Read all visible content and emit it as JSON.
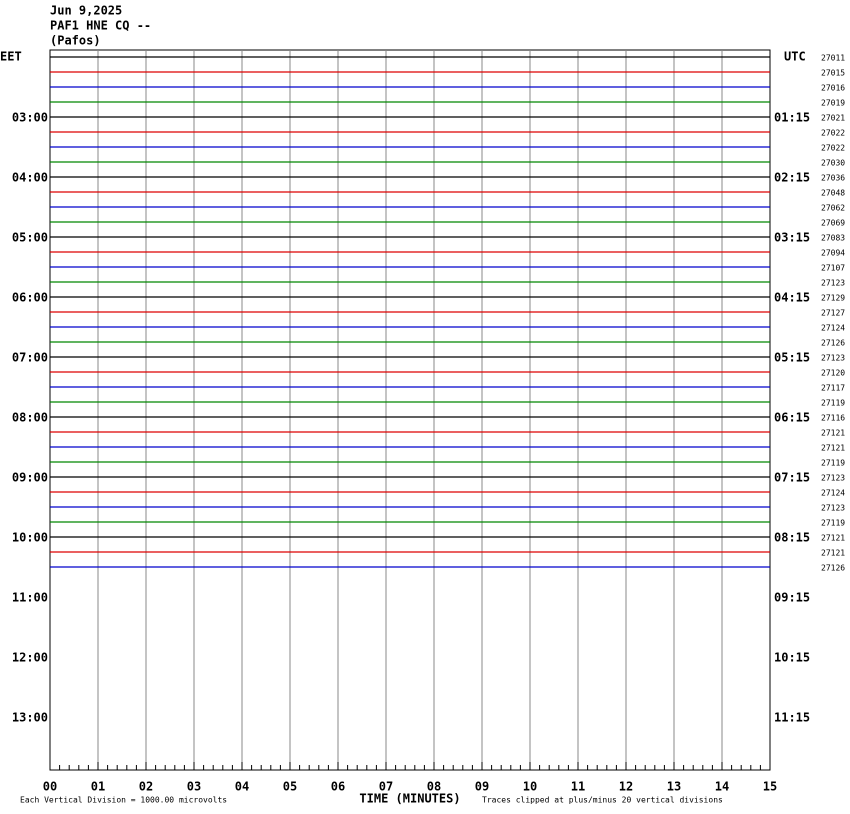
{
  "header": {
    "date": "Jun 9,2025",
    "station": "PAF1 HNE CQ --",
    "location": "(Pafos)"
  },
  "left_axis": {
    "title": "EET",
    "labels": [
      "03:00",
      "04:00",
      "05:00",
      "06:00",
      "07:00",
      "08:00",
      "09:00",
      "10:00",
      "11:00",
      "12:00",
      "13:00"
    ]
  },
  "right_axis": {
    "title": "UTC",
    "labels": [
      "01:15",
      "02:15",
      "03:15",
      "04:15",
      "05:15",
      "06:15",
      "07:15",
      "08:15",
      "09:15",
      "10:15",
      "11:15"
    ]
  },
  "trace_labels": [
    "27011",
    "27015",
    "27016",
    "27019",
    "27021",
    "27022",
    "27022",
    "27030",
    "27036",
    "27048",
    "27062",
    "27069",
    "27083",
    "27094",
    "27107",
    "27123",
    "27129",
    "27127",
    "27124",
    "27126",
    "27123",
    "27120",
    "27117",
    "27119",
    "27116",
    "27121",
    "27121",
    "27119",
    "27123",
    "27124",
    "27123",
    "27119",
    "27121",
    "27121",
    "27126"
  ],
  "x_axis": {
    "title": "TIME (MINUTES)",
    "labels": [
      "00",
      "01",
      "02",
      "03",
      "04",
      "05",
      "06",
      "07",
      "08",
      "09",
      "10",
      "11",
      "12",
      "13",
      "14",
      "15"
    ]
  },
  "footer": {
    "scale": "Each Vertical Division = 1000.00 microvolts",
    "clip": "Traces clipped at plus/minus 20 vertical divisions"
  }
}
